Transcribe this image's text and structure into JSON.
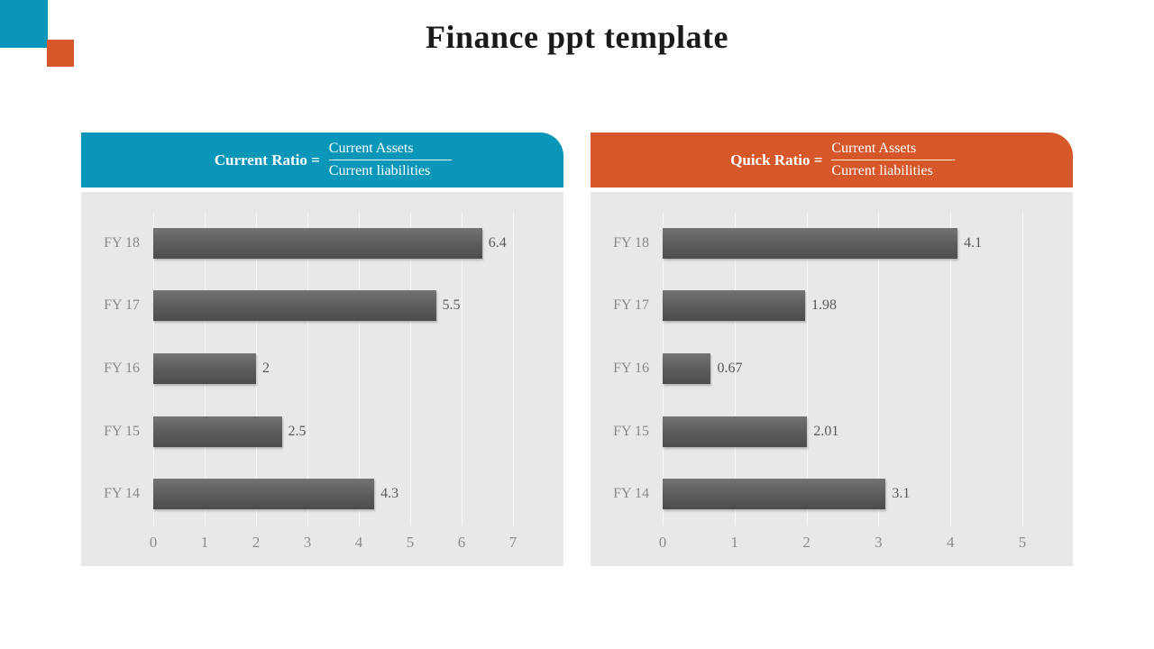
{
  "title": "Finance ppt template",
  "decor": {
    "teal_square_color": "#0996b9",
    "orange_square_color": "#d6582a"
  },
  "chart_data": [
    {
      "type": "bar",
      "orientation": "horizontal",
      "title": "Current Ratio = Current Assets / Current liabilities",
      "header": {
        "label": "Current Ratio =",
        "numerator": "Current Assets",
        "denominator": "Current liabilities"
      },
      "accent_color": "#0996b9",
      "categories": [
        "FY 18",
        "FY 17",
        "FY 16",
        "FY 15",
        "FY 14"
      ],
      "values": [
        6.4,
        5.5,
        2,
        2.5,
        4.3
      ],
      "value_labels": [
        "6.4",
        "5.5",
        "2",
        "2.5",
        "4.3"
      ],
      "xlim": [
        0,
        7
      ],
      "xticks": [
        0,
        1,
        2,
        3,
        4,
        5,
        6,
        7
      ],
      "bar_color": "#5d5d5d",
      "plot_background": "#e8e8e8",
      "grid": true,
      "legend": "none"
    },
    {
      "type": "bar",
      "orientation": "horizontal",
      "title": "Quick Ratio = Current Assets / Current liabilities",
      "header": {
        "label": "Quick Ratio =",
        "numerator": "Current Assets",
        "denominator": "Current liabilities"
      },
      "accent_color": "#d6582a",
      "categories": [
        "FY 18",
        "FY 17",
        "FY 16",
        "FY 15",
        "FY 14"
      ],
      "values": [
        4.1,
        1.98,
        0.67,
        2.01,
        3.1
      ],
      "value_labels": [
        "4.1",
        "1.98",
        "0.67",
        "2.01",
        "3.1"
      ],
      "xlim": [
        0,
        5
      ],
      "xticks": [
        0,
        1,
        2,
        3,
        4,
        5
      ],
      "bar_color": "#5d5d5d",
      "plot_background": "#e8e8e8",
      "grid": true,
      "legend": "none"
    }
  ]
}
